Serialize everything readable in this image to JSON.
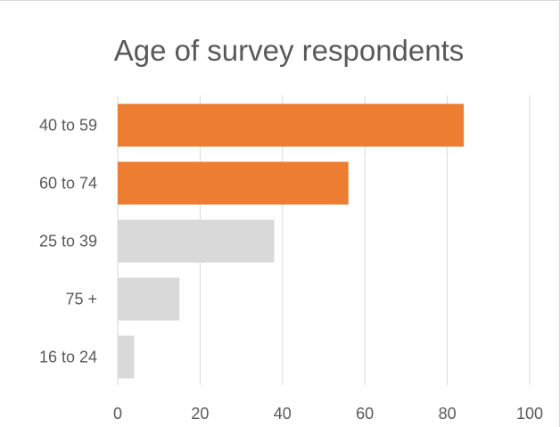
{
  "chart_data": {
    "type": "bar",
    "orientation": "horizontal",
    "title": "Age of survey respondents",
    "categories": [
      "40 to 59",
      "60 to 74",
      "25 to 39",
      "75 +",
      "16 to 24"
    ],
    "values": [
      84,
      56,
      38,
      15,
      4
    ],
    "bar_colors": [
      "#ED7D31",
      "#ED7D31",
      "#D9D9D9",
      "#D9D9D9",
      "#D9D9D9"
    ],
    "xlim": [
      0,
      100
    ],
    "x_ticks": [
      "0",
      "20",
      "40",
      "60",
      "80",
      "100"
    ],
    "grid": true,
    "legend": "none"
  }
}
